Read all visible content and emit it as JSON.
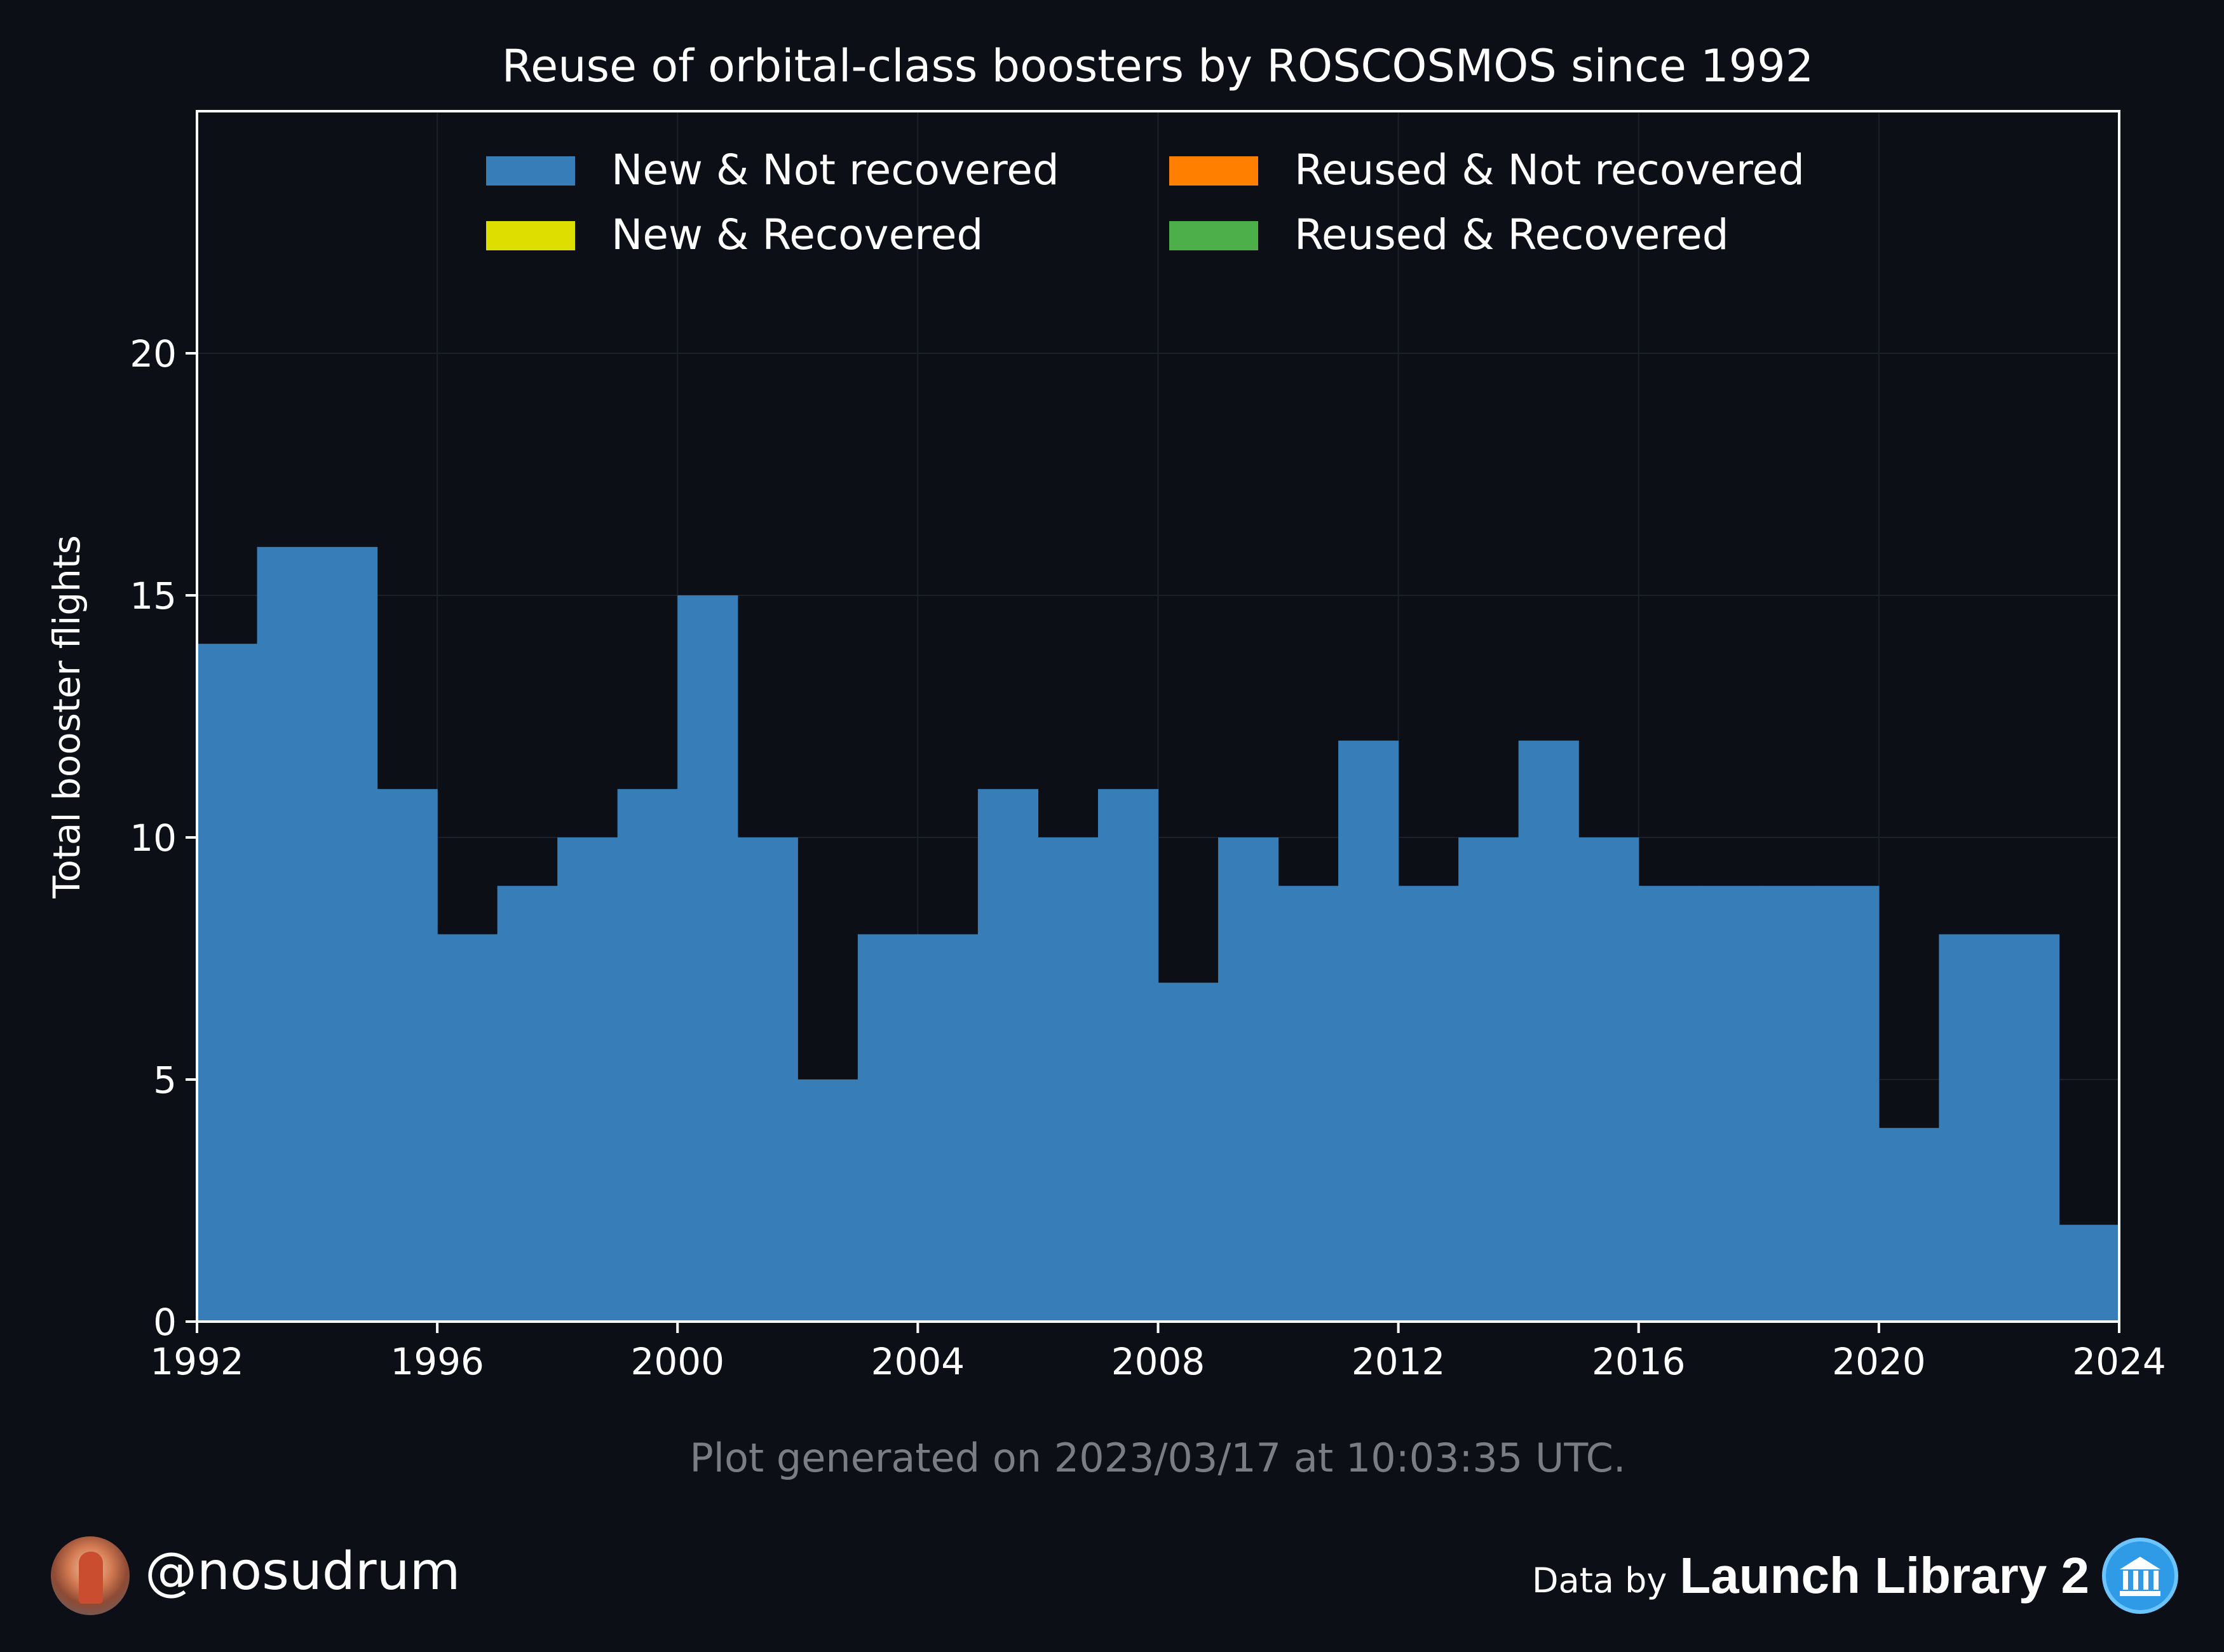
{
  "chart_data": {
    "type": "bar",
    "title": "Reuse of orbital-class boosters by ROSCOSMOS since 1992",
    "ylabel": "Total booster flights",
    "xlabel": "",
    "xlim": [
      1992,
      2024
    ],
    "ylim": [
      0,
      25
    ],
    "x_ticks": [
      "1992",
      "1996",
      "2000",
      "2004",
      "2008",
      "2012",
      "2016",
      "2020",
      "2024"
    ],
    "y_ticks": [
      "0",
      "5",
      "10",
      "15",
      "20"
    ],
    "grid": true,
    "legend_position": "top-center",
    "categories": [
      "1992",
      "1993",
      "1994",
      "1995",
      "1996",
      "1997",
      "1998",
      "1999",
      "2000",
      "2001",
      "2002",
      "2003",
      "2004",
      "2005",
      "2006",
      "2007",
      "2008",
      "2009",
      "2010",
      "2011",
      "2012",
      "2013",
      "2014",
      "2015",
      "2016",
      "2017",
      "2018",
      "2019",
      "2020",
      "2021",
      "2022",
      "2023"
    ],
    "series": [
      {
        "name": "New & Not recovered",
        "color": "#377eb8",
        "values": [
          14,
          16,
          16,
          11,
          8,
          9,
          10,
          11,
          15,
          10,
          5,
          8,
          8,
          11,
          10,
          11,
          7,
          10,
          9,
          12,
          9,
          10,
          12,
          10,
          9,
          9,
          9,
          9,
          4,
          8,
          8,
          2
        ]
      },
      {
        "name": "Reused & Not recovered",
        "color": "#ff7f00",
        "values": [
          0,
          0,
          0,
          0,
          0,
          0,
          0,
          0,
          0,
          0,
          0,
          0,
          0,
          0,
          0,
          0,
          0,
          0,
          0,
          0,
          0,
          0,
          0,
          0,
          0,
          0,
          0,
          0,
          0,
          0,
          0,
          0
        ]
      },
      {
        "name": "New & Recovered",
        "color": "#dede00",
        "values": [
          0,
          0,
          0,
          0,
          0,
          0,
          0,
          0,
          0,
          0,
          0,
          0,
          0,
          0,
          0,
          0,
          0,
          0,
          0,
          0,
          0,
          0,
          0,
          0,
          0,
          0,
          0,
          0,
          0,
          0,
          0,
          0
        ]
      },
      {
        "name": "Reused & Recovered",
        "color": "#4daf4a",
        "values": [
          0,
          0,
          0,
          0,
          0,
          0,
          0,
          0,
          0,
          0,
          0,
          0,
          0,
          0,
          0,
          0,
          0,
          0,
          0,
          0,
          0,
          0,
          0,
          0,
          0,
          0,
          0,
          0,
          0,
          0,
          0,
          0
        ]
      }
    ]
  },
  "footnote": "Plot generated on 2023/03/17 at 10:03:35 UTC.",
  "footer": {
    "handle": "@nosudrum",
    "credit_prefix": "Data by",
    "credit_name": "Launch Library 2"
  },
  "colors": {
    "background": "#0c0f15",
    "grid": "#1c2129",
    "axes": "#ffffff"
  }
}
